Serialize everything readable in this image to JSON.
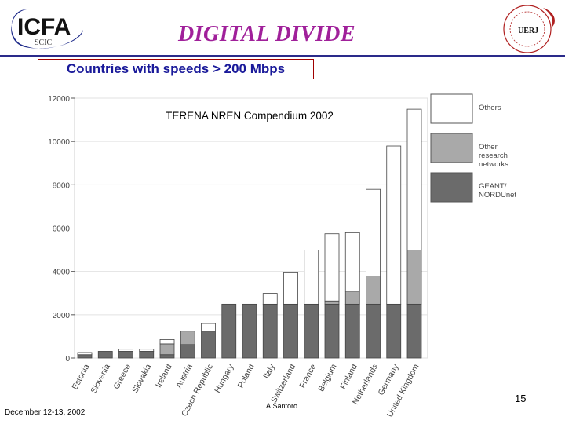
{
  "header": {
    "logo_text": "ICFA",
    "logo_subtext": "SCIC",
    "title": "DIGITAL DIVIDE",
    "subtitle": "Countries with speeds   >  200 Mbps",
    "seal_text": "UERJ"
  },
  "footer": {
    "date": "December 12-13, 2002",
    "author": "A.Santoro",
    "page_number": "15"
  },
  "colors": {
    "title": "#a0209a",
    "subtitle_text": "#1a1a9a",
    "subtitle_border": "#a00000",
    "geant": "#6b6b6b",
    "other_research": "#a9a9a9",
    "others": "#ffffff"
  },
  "chart_data": {
    "type": "bar",
    "stacked": true,
    "title": "TERENA NREN Compendium 2002",
    "xlabel": "",
    "ylabel": "",
    "ylim": [
      0,
      12000
    ],
    "yticks": [
      "0",
      "2000",
      "4000",
      "6000",
      "8000",
      "10000",
      "12000"
    ],
    "categories": [
      "Estonia",
      "Slovenia",
      "Greece",
      "Slovakia",
      "Ireland",
      "Austria",
      "Czech Republic",
      "Hungary",
      "Poland",
      "Italy",
      "Switzerland",
      "France",
      "Belgium",
      "Finland",
      "Netherlands",
      "Germany",
      "United Kingdom"
    ],
    "series": [
      {
        "name": "GEANT/ NORDUnet",
        "color": "#6b6b6b",
        "values": [
          155,
          310,
          310,
          310,
          155,
          622,
          1244,
          2488,
          2488,
          2488,
          2488,
          2488,
          2488,
          2488,
          2488,
          2488,
          2488
        ]
      },
      {
        "name": "Other research networks",
        "color": "#a9a9a9",
        "values": [
          0,
          0,
          0,
          0,
          500,
          622,
          0,
          0,
          0,
          0,
          0,
          0,
          150,
          600,
          1300,
          0,
          2500
        ]
      },
      {
        "name": "Others",
        "color": "#ffffff",
        "values": [
          100,
          0,
          100,
          100,
          200,
          0,
          350,
          0,
          0,
          500,
          1450,
          2500,
          3100,
          2700,
          4000,
          7300,
          6500
        ]
      }
    ],
    "legend_position": "right"
  }
}
